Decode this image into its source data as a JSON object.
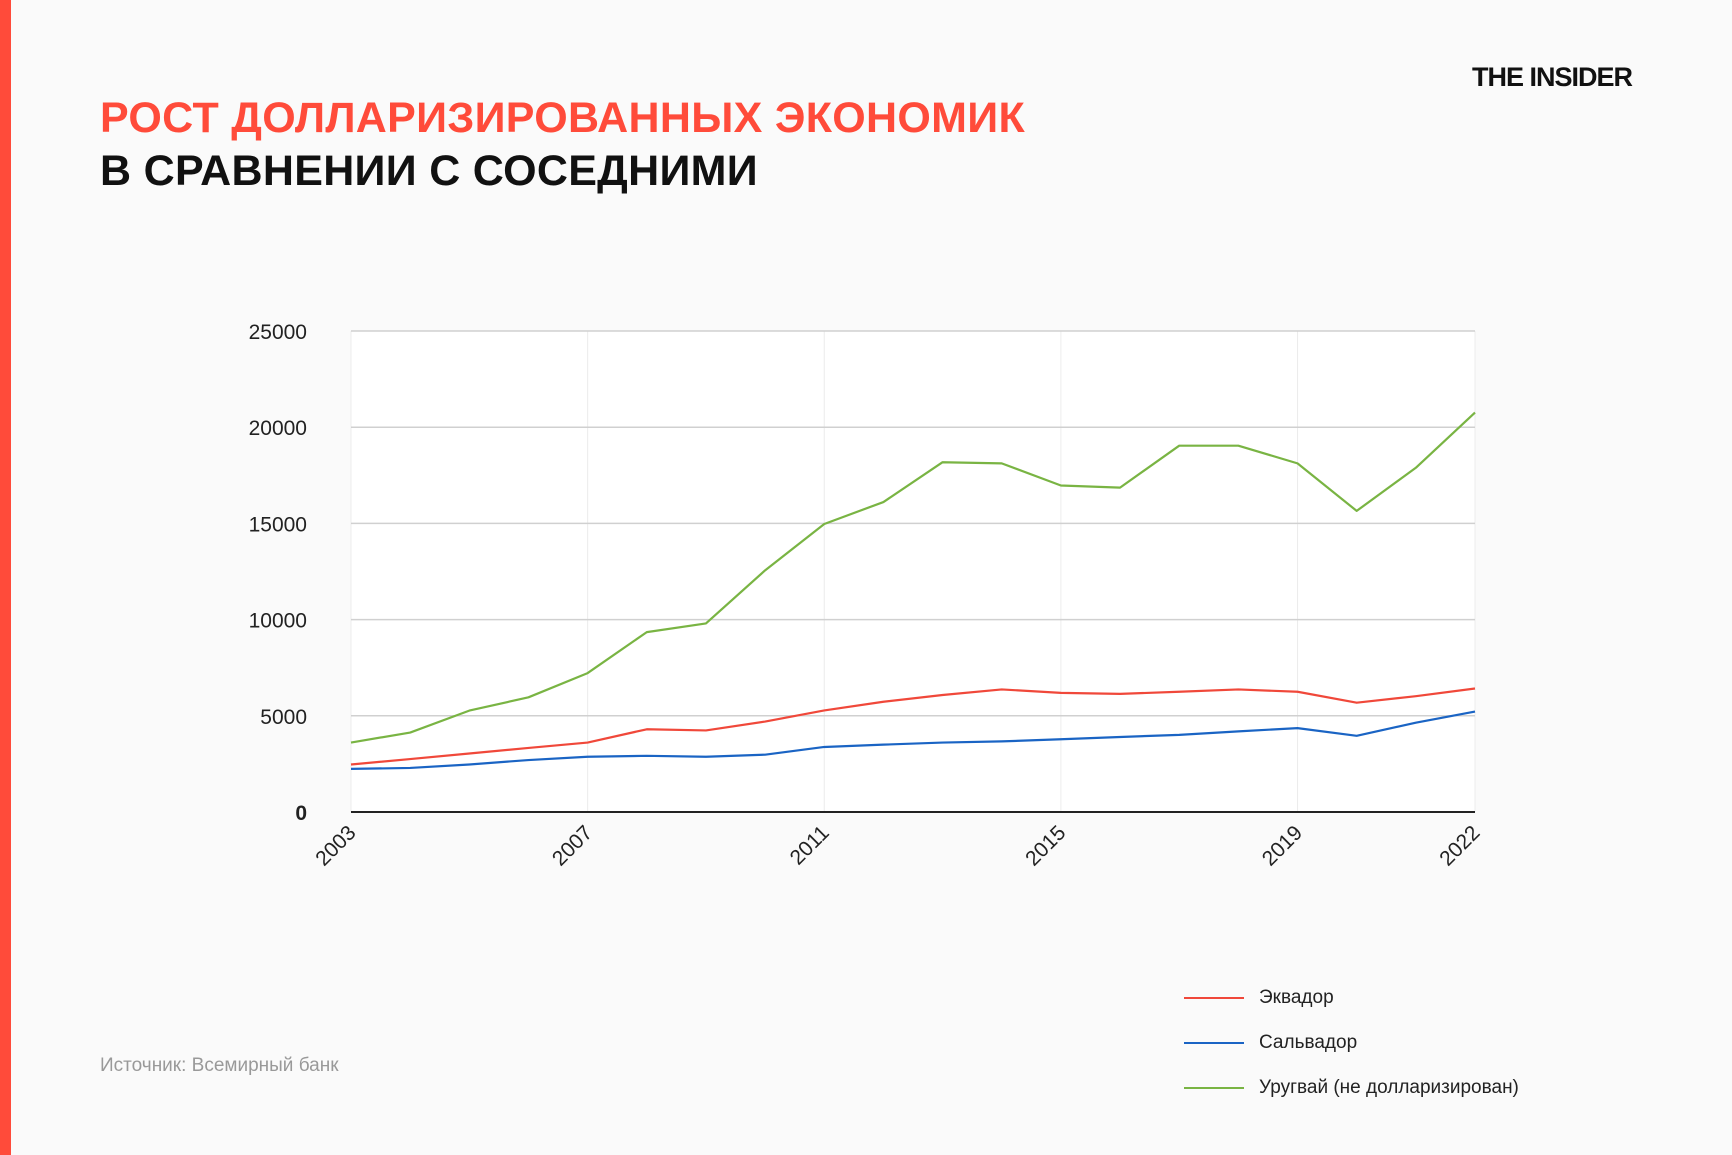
{
  "header": {
    "title_line1": "РОСТ ДОЛЛАРИЗИРОВАННЫХ ЭКОНОМИК",
    "title_line2": "В СРАВНЕНИИ С СОСЕДНИМИ",
    "logo": "THE INSIDER"
  },
  "source": "Источник: Всемирный банк",
  "colors": {
    "accent": "#ff4b3a",
    "ecuador": "#f0483a",
    "salvador": "#1a64c4",
    "uruguay": "#79b443"
  },
  "chart_data": {
    "type": "line",
    "x": [
      2003,
      2004,
      2005,
      2006,
      2007,
      2008,
      2009,
      2010,
      2011,
      2012,
      2013,
      2014,
      2015,
      2016,
      2017,
      2018,
      2019,
      2020,
      2021,
      2022
    ],
    "x_tick_labels": [
      "2003",
      "2007",
      "2011",
      "2015",
      "2019",
      "2022"
    ],
    "y_tick_labels": [
      "0",
      "5000",
      "10000",
      "15000",
      "20000",
      "25000"
    ],
    "ylim": [
      0,
      25000
    ],
    "grid": true,
    "legend_position": "bottom-right",
    "series": [
      {
        "name": "Эквадор",
        "color": "#f0483a",
        "values": [
          2470,
          2750,
          3040,
          3330,
          3610,
          4300,
          4240,
          4700,
          5280,
          5730,
          6080,
          6370,
          6190,
          6140,
          6250,
          6370,
          6250,
          5680,
          6020,
          6420
        ]
      },
      {
        "name": "Сальвадор",
        "color": "#1a64c4",
        "values": [
          2240,
          2290,
          2470,
          2700,
          2870,
          2920,
          2870,
          2980,
          3380,
          3500,
          3610,
          3670,
          3780,
          3900,
          4010,
          4190,
          4360,
          3960,
          4640,
          5220
        ]
      },
      {
        "name": "Уругвай (не долларизирован)",
        "color": "#79b443",
        "values": [
          3610,
          4130,
          5270,
          5960,
          7220,
          9350,
          9800,
          12560,
          14970,
          16110,
          18180,
          18120,
          16970,
          16860,
          19040,
          19040,
          18120,
          15650,
          17890,
          20760
        ]
      }
    ]
  }
}
